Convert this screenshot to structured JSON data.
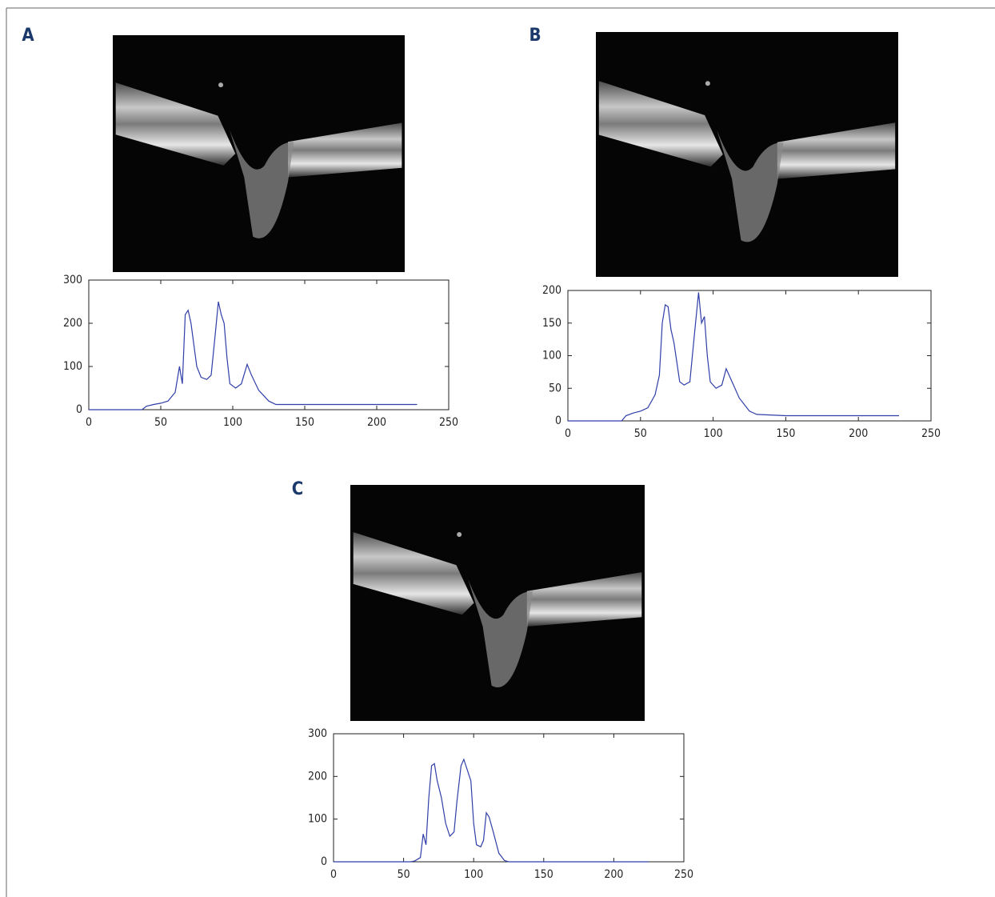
{
  "chart_data": [
    {
      "type": "line",
      "panel": "A",
      "color": "#2f3fa8",
      "x": [
        0,
        37,
        40,
        45,
        50,
        55,
        60,
        63,
        65,
        67,
        69,
        71,
        73,
        75,
        78,
        82,
        85,
        88,
        90,
        92,
        94,
        96,
        98,
        102,
        106,
        110,
        113,
        118,
        125,
        130,
        150,
        170,
        190,
        210,
        228
      ],
      "values": [
        0,
        0,
        8,
        12,
        15,
        20,
        40,
        100,
        60,
        220,
        230,
        200,
        150,
        100,
        75,
        70,
        80,
        180,
        250,
        220,
        200,
        120,
        60,
        50,
        60,
        105,
        80,
        45,
        20,
        12,
        12,
        12,
        12,
        12,
        12
      ],
      "xlim": [
        0,
        250
      ],
      "xticks": [
        0,
        50,
        100,
        150,
        200,
        250
      ],
      "ylim": [
        0,
        300
      ],
      "yticks": [
        0,
        100,
        200,
        300
      ]
    },
    {
      "type": "line",
      "panel": "B",
      "color": "#2f3fa8",
      "x": [
        0,
        37,
        40,
        45,
        50,
        55,
        60,
        63,
        65,
        67,
        69,
        71,
        73,
        75,
        77,
        80,
        84,
        87,
        90,
        92,
        94,
        96,
        98,
        102,
        106,
        109,
        112,
        118,
        125,
        130,
        150,
        170,
        190,
        210,
        228
      ],
      "values": [
        0,
        0,
        8,
        12,
        15,
        20,
        40,
        70,
        150,
        178,
        175,
        140,
        120,
        90,
        60,
        55,
        60,
        130,
        197,
        150,
        160,
        100,
        60,
        50,
        55,
        80,
        65,
        35,
        15,
        10,
        8,
        8,
        8,
        8,
        8
      ],
      "xlim": [
        0,
        250
      ],
      "xticks": [
        0,
        50,
        100,
        150,
        200,
        250
      ],
      "ylim": [
        0,
        200
      ],
      "yticks": [
        0,
        50,
        100,
        150,
        200
      ]
    },
    {
      "type": "line",
      "panel": "C",
      "color": "#2f3fa8",
      "x": [
        0,
        55,
        58,
        62,
        64,
        66,
        68,
        70,
        72,
        74,
        77,
        80,
        83,
        86,
        88,
        91,
        93,
        95,
        98,
        100,
        102,
        105,
        107,
        109,
        111,
        114,
        118,
        122,
        125,
        225
      ],
      "values": [
        0,
        0,
        2,
        10,
        65,
        40,
        150,
        225,
        230,
        190,
        150,
        90,
        60,
        70,
        140,
        225,
        240,
        220,
        190,
        90,
        40,
        35,
        50,
        115,
        105,
        70,
        20,
        3,
        0,
        0
      ],
      "xlim": [
        0,
        250
      ],
      "xticks": [
        0,
        50,
        100,
        150,
        200,
        250
      ],
      "ylim": [
        0,
        300
      ],
      "yticks": [
        0,
        100,
        200,
        300
      ]
    }
  ]
}
